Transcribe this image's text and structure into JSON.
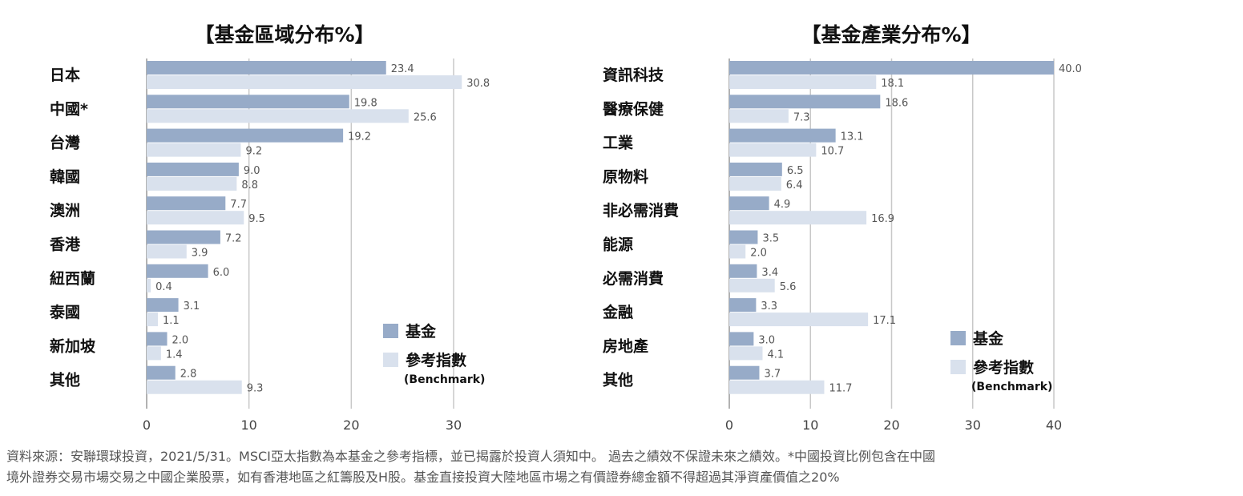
{
  "colors": {
    "fund": "#97abc8",
    "benchmark": "#d9e1ed"
  },
  "chart_data": [
    {
      "type": "bar",
      "orientation": "horizontal",
      "title": "【基金區域分布%】",
      "categories": [
        "日本",
        "中國*",
        "台灣",
        "韓國",
        "澳洲",
        "香港",
        "紐西蘭",
        "泰國",
        "新加坡",
        "其他"
      ],
      "series": [
        {
          "name": "基金",
          "values": [
            23.4,
            19.8,
            19.2,
            9.0,
            7.7,
            7.2,
            6.0,
            3.1,
            2.0,
            2.8
          ],
          "labels": [
            "23.4",
            "19.8",
            "19.2",
            "9.0",
            "7.7",
            "7.2",
            "6.0",
            "3.1",
            "2.0",
            "2.8"
          ]
        },
        {
          "name": "參考指數",
          "values": [
            30.8,
            25.6,
            9.2,
            8.8,
            9.5,
            3.9,
            0.4,
            1.1,
            1.4,
            9.3
          ],
          "labels": [
            "30.8",
            "25.6",
            "9.2",
            "8.8",
            "9.5",
            "3.9",
            "0.4",
            "1.1",
            "1.4",
            "9.3"
          ]
        }
      ],
      "xlim": [
        0,
        30
      ],
      "xticks": [
        "0",
        "10",
        "20",
        "30"
      ],
      "grid": true,
      "legend": {
        "position": "bottom-right",
        "fund": "基金",
        "benchmark": "參考指數",
        "benchmark_sub": "(Benchmark)"
      }
    },
    {
      "type": "bar",
      "orientation": "horizontal",
      "title": "【基金產業分布%】",
      "categories": [
        "資訊科技",
        "醫療保健",
        "工業",
        "原物料",
        "非必需消費",
        "能源",
        "必需消費",
        "金融",
        "房地產",
        "其他"
      ],
      "series": [
        {
          "name": "基金",
          "values": [
            40.0,
            18.6,
            13.1,
            6.5,
            4.9,
            3.5,
            3.4,
            3.3,
            3.0,
            3.7
          ],
          "labels": [
            "40.0",
            "18.6",
            "13.1",
            "6.5",
            "4.9",
            "3.5",
            "3.4",
            "3.3",
            "3.0",
            "3.7"
          ]
        },
        {
          "name": "參考指數",
          "values": [
            18.1,
            7.3,
            10.7,
            6.4,
            16.9,
            2.0,
            5.6,
            17.1,
            4.1,
            11.7
          ],
          "labels": [
            "18.1",
            "7.3",
            "10.7",
            "6.4",
            "16.9",
            "2.0",
            "5.6",
            "17.1",
            "4.1",
            "11.7"
          ]
        }
      ],
      "xlim": [
        0,
        40
      ],
      "xticks": [
        "0",
        "10",
        "20",
        "30",
        "40"
      ],
      "grid": true,
      "legend": {
        "position": "bottom-right",
        "fund": "基金",
        "benchmark": "參考指數",
        "benchmark_sub": "(Benchmark)"
      }
    }
  ],
  "footnote": {
    "line1": "資料來源：安聯環球投資，2021/5/31。MSCI亞太指數為本基金之參考指標，並已揭露於投資人須知中。 過去之績效不保證未來之績效。*中國投資比例包含在中國",
    "line2": "境外證券交易市場交易之中國企業股票，如有香港地區之紅籌股及H股。基金直接投資大陸地區市場之有價證券總金額不得超過其淨資產價值之20%"
  }
}
